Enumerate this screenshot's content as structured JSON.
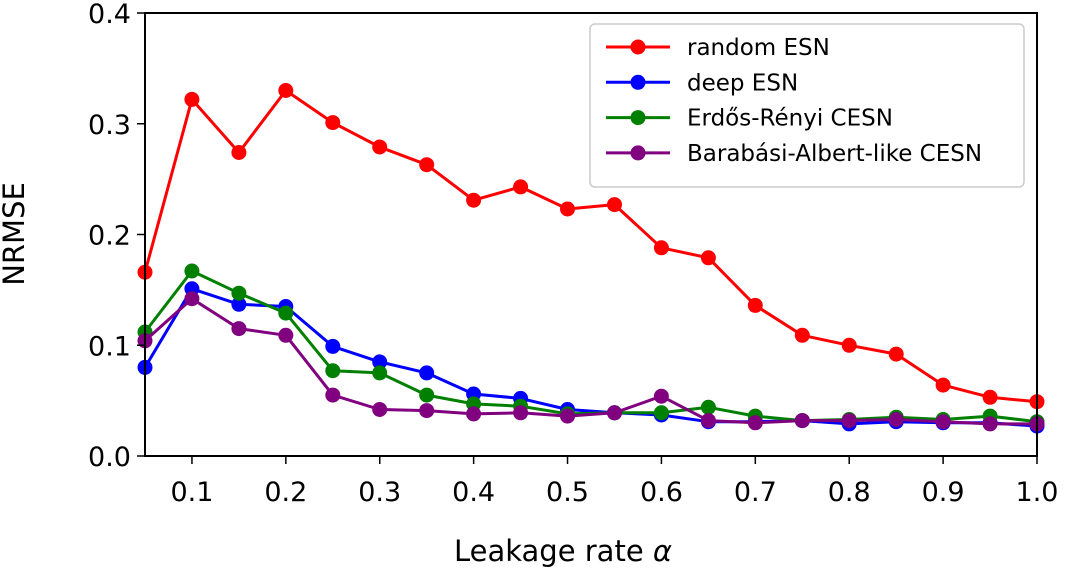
{
  "chart_data": {
    "type": "line",
    "title": "",
    "xlabel": "Leakage rate",
    "xlabel_symbol": "α",
    "ylabel": "NRMSE",
    "xlim": [
      0.05,
      1.0
    ],
    "ylim": [
      0.0,
      0.4
    ],
    "x": [
      0.05,
      0.1,
      0.15,
      0.2,
      0.25,
      0.3,
      0.35,
      0.4,
      0.45,
      0.5,
      0.55,
      0.6,
      0.65,
      0.7,
      0.75,
      0.8,
      0.85,
      0.9,
      0.95,
      1.0
    ],
    "xticks": [
      0.1,
      0.2,
      0.3,
      0.4,
      0.5,
      0.6,
      0.7,
      0.8,
      0.9,
      1.0
    ],
    "xtick_labels": [
      "0.1",
      "0.2",
      "0.3",
      "0.4",
      "0.5",
      "0.6",
      "0.7",
      "0.8",
      "0.9",
      "1.0"
    ],
    "yticks": [
      0.0,
      0.1,
      0.2,
      0.3,
      0.4
    ],
    "ytick_labels": [
      "0.0",
      "0.1",
      "0.2",
      "0.3",
      "0.4"
    ],
    "grid": false,
    "legend_position": "top-right",
    "series": [
      {
        "name": "random ESN",
        "color": "#ff0000",
        "values": [
          0.166,
          0.322,
          0.274,
          0.33,
          0.301,
          0.279,
          0.263,
          0.231,
          0.243,
          0.223,
          0.227,
          0.188,
          0.179,
          0.136,
          0.109,
          0.1,
          0.092,
          0.064,
          0.053,
          0.049
        ]
      },
      {
        "name": "deep ESN",
        "color": "#0000ff",
        "values": [
          0.08,
          0.151,
          0.137,
          0.135,
          0.099,
          0.085,
          0.075,
          0.056,
          0.052,
          0.042,
          0.039,
          0.037,
          0.031,
          0.031,
          0.032,
          0.029,
          0.031,
          0.03,
          0.03,
          0.027
        ]
      },
      {
        "name": "Erdős-Rényi CESN",
        "color": "#008000",
        "values": [
          0.112,
          0.167,
          0.147,
          0.129,
          0.077,
          0.075,
          0.055,
          0.047,
          0.045,
          0.038,
          0.039,
          0.039,
          0.044,
          0.036,
          0.032,
          0.033,
          0.035,
          0.033,
          0.036,
          0.031
        ]
      },
      {
        "name": "Barabási-Albert-like CESN",
        "color": "#800080",
        "values": [
          0.104,
          0.142,
          0.115,
          0.109,
          0.055,
          0.042,
          0.041,
          0.038,
          0.039,
          0.036,
          0.039,
          0.054,
          0.032,
          0.03,
          0.032,
          0.032,
          0.033,
          0.031,
          0.029,
          0.029
        ]
      }
    ]
  }
}
